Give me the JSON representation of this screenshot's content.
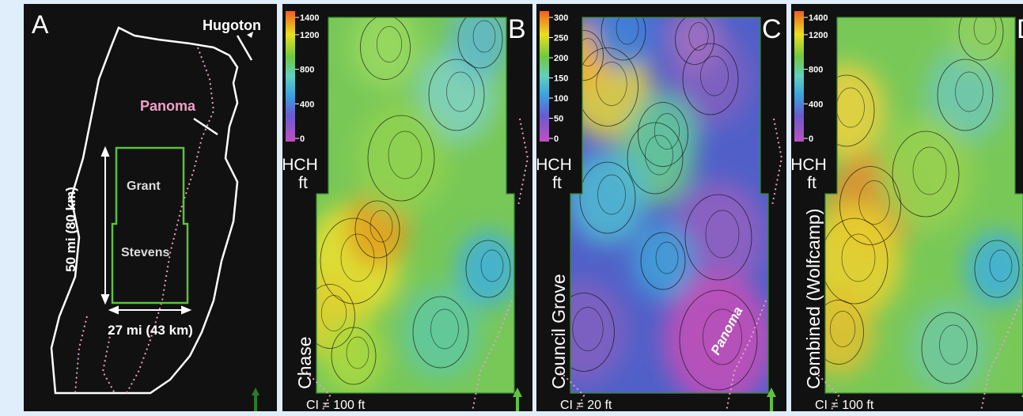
{
  "panel_a": {
    "label": "A",
    "hugoton": "Hugoton",
    "panoma": "Panoma",
    "county_1": "Grant",
    "county_2": "Stevens",
    "height_label": "50 mi (80 km)",
    "width_label": "27 mi (43 km)"
  },
  "maps": [
    {
      "label": "B",
      "colorbar_ticks": [
        1400,
        1200,
        800,
        400,
        0
      ],
      "unit_1": "HCH",
      "unit_2": "ft",
      "interval_name": "Chase",
      "contour_interval": "CI = 100 ft"
    },
    {
      "label": "C",
      "colorbar_ticks": [
        300,
        250,
        200,
        150,
        100,
        50,
        0
      ],
      "unit_1": "HCH",
      "unit_2": "ft",
      "interval_name": "Council Grove",
      "contour_interval": "CI = 20 ft",
      "annotation": "Panoma"
    },
    {
      "label": "D",
      "colorbar_ticks": [
        1400,
        1200,
        800,
        400,
        0
      ],
      "unit_1": "HCH",
      "unit_2": "ft",
      "interval_name": "Combined (Wolfcamp)",
      "contour_interval": "CI = 100 ft"
    }
  ]
}
